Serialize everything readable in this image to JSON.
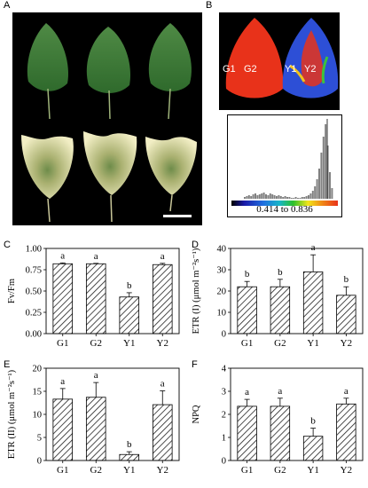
{
  "panels": {
    "A": "A",
    "B": "B",
    "C": "C",
    "D": "D",
    "E": "E",
    "F": "F"
  },
  "photo_b": {
    "labels": [
      "G1",
      "G2",
      "Y1",
      "Y2"
    ],
    "colorbar_range": "0.414 to 0.836"
  },
  "chart_data": [
    {
      "panel": "C",
      "type": "bar",
      "categories": [
        "G1",
        "G2",
        "Y1",
        "Y2"
      ],
      "values": [
        0.82,
        0.82,
        0.43,
        0.81
      ],
      "errors": [
        0.01,
        0.005,
        0.05,
        0.015
      ],
      "letters": [
        "a",
        "a",
        "b",
        "a"
      ],
      "ylabel": "Fv/Fm",
      "ylim": [
        0,
        1.0
      ],
      "yticks": [
        "0.00",
        "0.25",
        "0.50",
        "0.75",
        "1.00"
      ],
      "ytick_values": [
        0,
        0.25,
        0.5,
        0.75,
        1.0
      ]
    },
    {
      "panel": "D",
      "type": "bar",
      "categories": [
        "G1",
        "G2",
        "Y1",
        "Y2"
      ],
      "values": [
        22,
        22,
        29,
        18
      ],
      "errors": [
        2.5,
        3.5,
        8,
        4
      ],
      "letters": [
        "b",
        "b",
        "a",
        "b"
      ],
      "ylabel": "ETR (I) (μmol m⁻²s⁻¹)",
      "ylim": [
        0,
        40
      ],
      "yticks": [
        "0",
        "10",
        "20",
        "30",
        "40"
      ],
      "ytick_values": [
        0,
        10,
        20,
        30,
        40
      ]
    },
    {
      "panel": "E",
      "type": "bar",
      "categories": [
        "G1",
        "G2",
        "Y1",
        "Y2"
      ],
      "values": [
        13.3,
        13.7,
        1.3,
        12.1
      ],
      "errors": [
        2.3,
        3.2,
        0.6,
        3.0
      ],
      "letters": [
        "a",
        "a",
        "b",
        "a"
      ],
      "ylabel": "ETR (II) (μmol m⁻²s⁻¹)",
      "ylim": [
        0,
        20
      ],
      "yticks": [
        "0",
        "5",
        "10",
        "15",
        "20"
      ],
      "ytick_values": [
        0,
        5,
        10,
        15,
        20
      ]
    },
    {
      "panel": "F",
      "type": "bar",
      "categories": [
        "G1",
        "G2",
        "Y1",
        "Y2"
      ],
      "values": [
        2.35,
        2.35,
        1.05,
        2.45
      ],
      "errors": [
        0.3,
        0.35,
        0.35,
        0.25
      ],
      "letters": [
        "a",
        "a",
        "b",
        "a"
      ],
      "ylabel": "NPQ",
      "ylim": [
        0,
        4
      ],
      "yticks": [
        "0",
        "1",
        "2",
        "3",
        "4"
      ],
      "ytick_values": [
        0,
        1,
        2,
        3,
        4
      ]
    }
  ],
  "colors": {
    "leaf_green": "#3f7a3a",
    "leaf_yellow": "#e9e6b0",
    "fluor_red": "#e8321a",
    "hist_bar": "#808080"
  }
}
